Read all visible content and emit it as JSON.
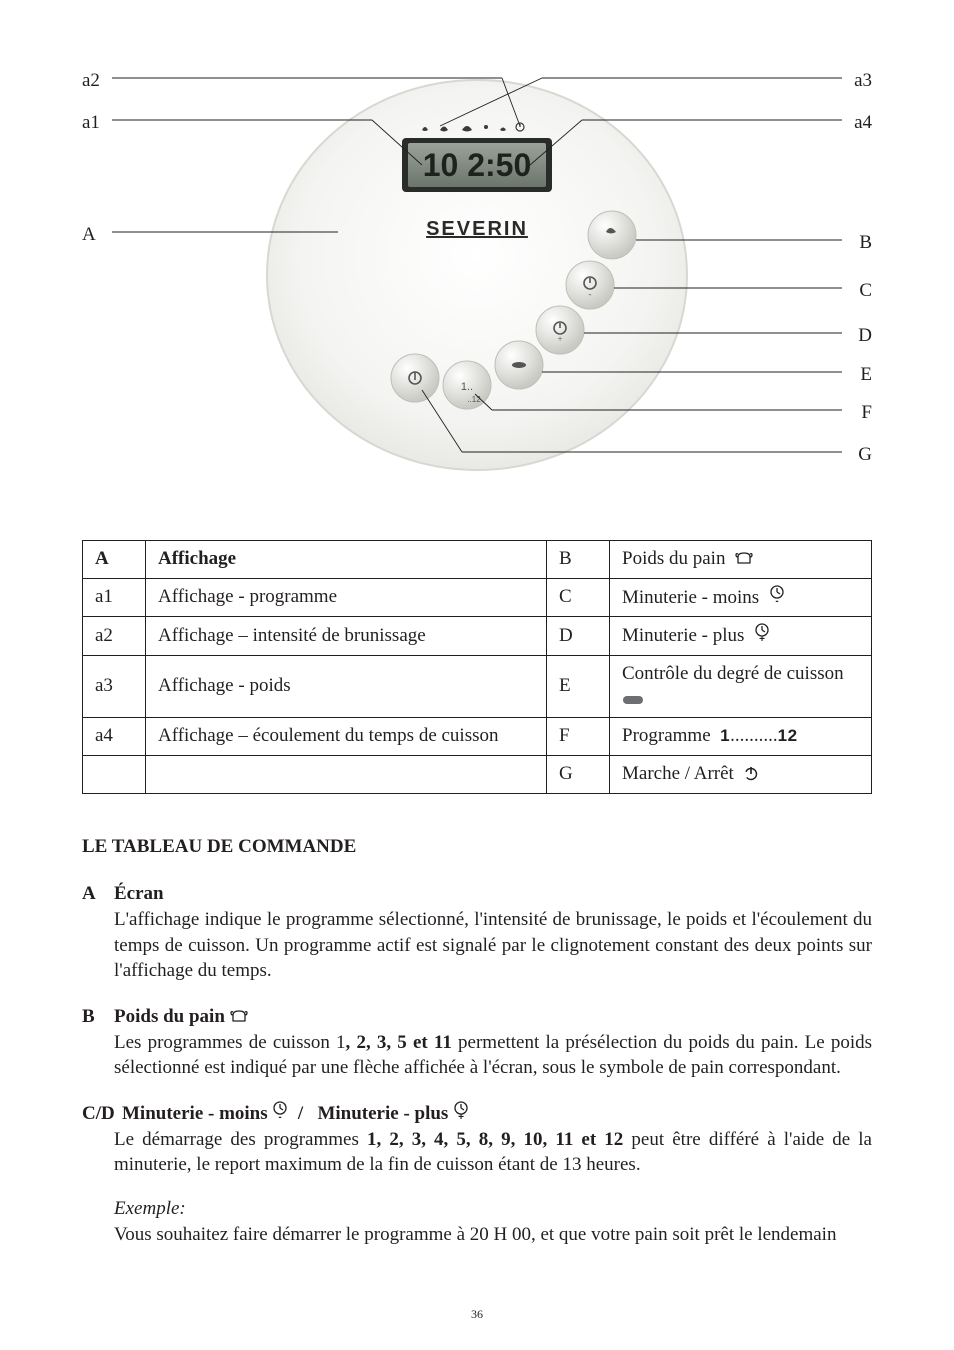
{
  "diagram": {
    "left_labels": [
      "a2",
      "a1",
      "A"
    ],
    "right_labels": [
      "a3",
      "a4",
      "B",
      "C",
      "D",
      "E",
      "F",
      "G"
    ],
    "brand": "SEVERIN",
    "lcd": "10 2:50"
  },
  "table": {
    "rows": [
      {
        "l_key": "A",
        "l_bold": true,
        "l_desc": "Affichage",
        "r_key": "B",
        "r_desc": "Poids du pain",
        "r_icon": "bread"
      },
      {
        "l_key": "a1",
        "l_bold": false,
        "l_desc": "Affichage - programme",
        "r_key": "C",
        "r_desc": "Minuterie - moins",
        "r_icon": "timer-minus"
      },
      {
        "l_key": "a2",
        "l_bold": false,
        "l_desc": "Affichage – intensité de brunissage",
        "r_key": "D",
        "r_desc": "Minuterie - plus",
        "r_icon": "timer-plus"
      },
      {
        "l_key": "a3",
        "l_bold": false,
        "l_desc": "Affichage - poids",
        "r_key": "E",
        "r_desc": "Contrôle du degré de cuisson",
        "r_icon": "pill"
      },
      {
        "l_key": "a4",
        "l_bold": false,
        "l_desc": "Affichage – écoulement du temps de cuisson",
        "r_key": "F",
        "r_desc": "Programme",
        "r_icon": "prog",
        "r_extra": [
          "1",
          "..........",
          "12"
        ]
      },
      {
        "l_key": "",
        "l_bold": false,
        "l_desc": "",
        "r_key": "G",
        "r_desc": "Marche / Arrêt",
        "r_icon": "power"
      }
    ]
  },
  "section_title": "LE TABLEAU DE COMMANDE",
  "entries": {
    "A": {
      "letter": "A",
      "title": "Écran",
      "body": "L'affichage indique le programme sélectionné, l'intensité de brunissage, le poids et l'écoulement du temps de cuisson. Un programme actif est signalé par le clignotement constant des deux points sur l'affichage du temps."
    },
    "B": {
      "letter": "B",
      "title": "Poids du pain",
      "title_icon": "bread",
      "body_pre": "Les programmes de cuisson 1",
      "body_bold": ", 2, 3, 5 et 11",
      "body_post": " permettent la présélection du poids du pain. Le poids sélectionné est indiqué par une flèche affichée à l'écran, sous le symbole de pain correspondant."
    },
    "CD": {
      "letter": "C/D",
      "title_a": "Minuterie - moins",
      "title_b": "Minuterie - plus",
      "body_pre": "Le démarrage des programmes ",
      "body_bold": "1, 2, 3, 4, 5, 8, 9, 10, 11 et 12",
      "body_post": " peut être différé à l'aide de la minuterie, le report maximum de la fin de cuisson étant de 13 heures.",
      "example_label": "Exemple:",
      "example_body": "Vous souhaitez faire démarrer le programme à 20 H 00, et que votre pain soit prêt le lendemain"
    }
  },
  "page_number": "36"
}
